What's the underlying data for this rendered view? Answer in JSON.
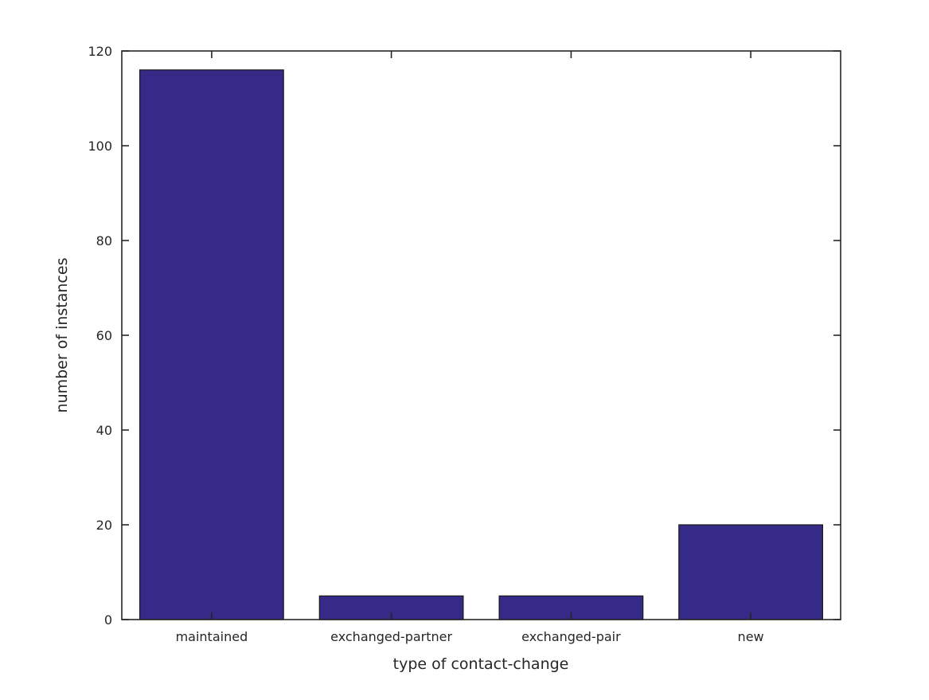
{
  "chart_data": {
    "type": "bar",
    "title": "",
    "categories": [
      "maintained",
      "exchanged-partner",
      "exchanged-pair",
      "new"
    ],
    "values": [
      116,
      5,
      5,
      20
    ],
    "xlabel": "type of contact-change",
    "ylabel": "number of instances",
    "ylim": [
      0,
      120
    ],
    "yticks": [
      0,
      20,
      40,
      60,
      80,
      100,
      120
    ],
    "grid": false,
    "legend": null,
    "bar_width_fraction": 0.8,
    "box": true,
    "colors": {
      "bar_fill": "#352a87",
      "bar_edge": "#1a1a1a",
      "axis": "#262626",
      "tick_text": "#262626",
      "background": "#ffffff"
    }
  }
}
